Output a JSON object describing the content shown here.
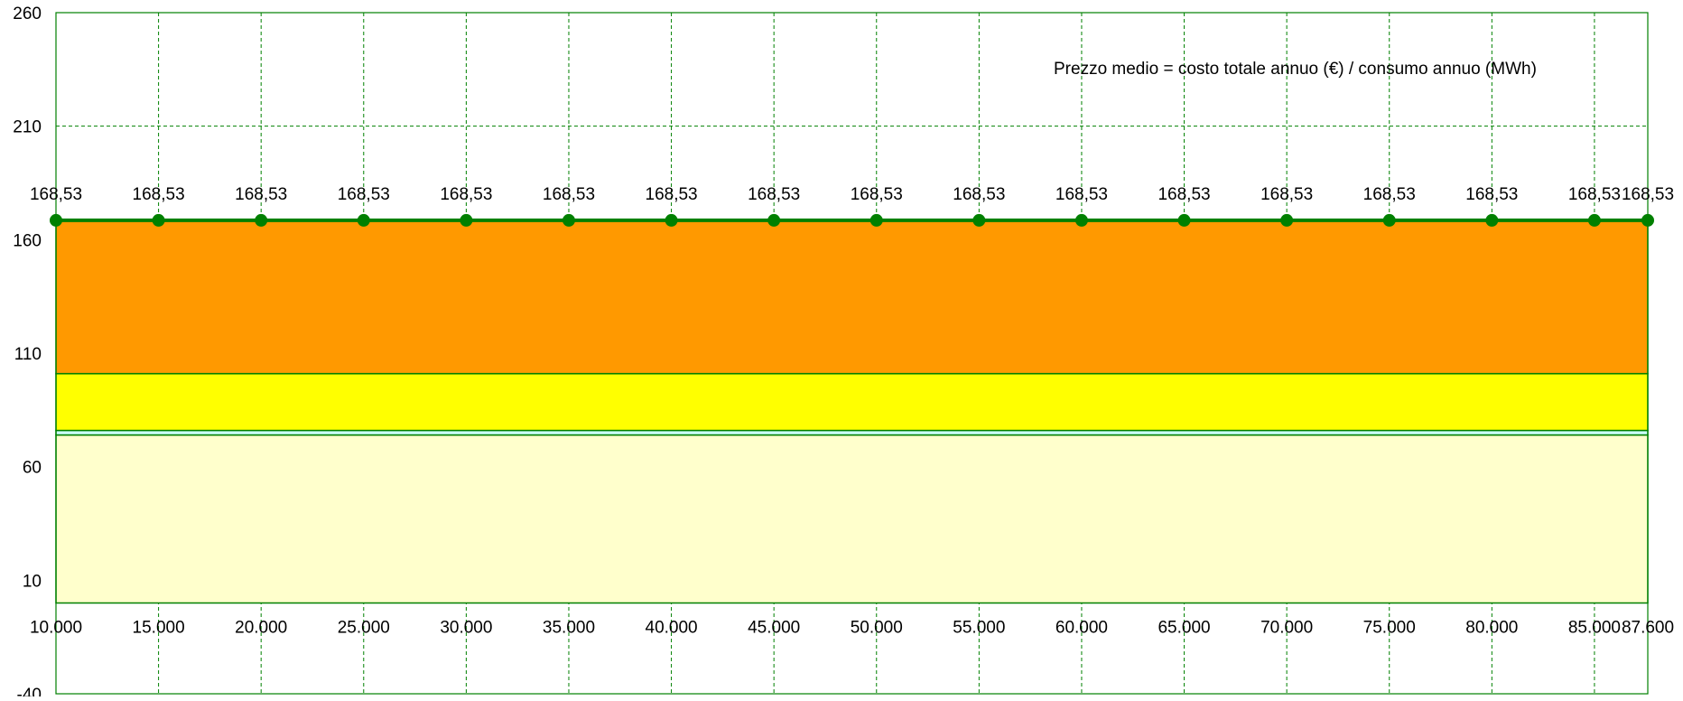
{
  "chart_data": {
    "type": "area",
    "title": "",
    "xlabel": "",
    "ylabel": "",
    "x": [
      10000,
      15000,
      20000,
      25000,
      30000,
      35000,
      40000,
      45000,
      50000,
      55000,
      60000,
      65000,
      70000,
      75000,
      80000,
      85000,
      87600
    ],
    "x_tick_labels": [
      "10.000",
      "15.000",
      "20.000",
      "25.000",
      "30.000",
      "35.000",
      "40.000",
      "45.000",
      "50.000",
      "55.000",
      "60.000",
      "65.000",
      "70.000",
      "75.000",
      "80.000",
      "85.000",
      "87.600"
    ],
    "ylim": [
      -40,
      260
    ],
    "y_ticks": [
      -40,
      10,
      60,
      110,
      160,
      210,
      260
    ],
    "y_tick_labels": [
      "-40",
      "10",
      "60",
      "110",
      "160",
      "210",
      "260"
    ],
    "grid": true,
    "stack_baseline": 0,
    "stacked_series": [
      {
        "values": [
          74.0,
          74.0,
          74.0,
          74.0,
          74.0,
          74.0,
          74.0,
          74.0,
          74.0,
          74.0,
          74.0,
          74.0,
          74.0,
          74.0,
          74.0,
          74.0,
          74.0
        ],
        "color": "#FFFFCC"
      },
      {
        "values": [
          2.0,
          2.0,
          2.0,
          2.0,
          2.0,
          2.0,
          2.0,
          2.0,
          2.0,
          2.0,
          2.0,
          2.0,
          2.0,
          2.0,
          2.0,
          2.0,
          2.0
        ],
        "color": "#CCFFFF"
      },
      {
        "values": [
          25.0,
          25.0,
          25.0,
          25.0,
          25.0,
          25.0,
          25.0,
          25.0,
          25.0,
          25.0,
          25.0,
          25.0,
          25.0,
          25.0,
          25.0,
          25.0,
          25.0
        ],
        "color": "#FFFF00"
      },
      {
        "values": [
          67.5,
          67.5,
          67.5,
          67.5,
          67.5,
          67.5,
          67.5,
          67.5,
          67.5,
          67.5,
          67.5,
          67.5,
          67.5,
          67.5,
          67.5,
          67.5,
          67.5
        ],
        "color": "#FF9900"
      }
    ],
    "line_series": {
      "values": [
        168.53,
        168.53,
        168.53,
        168.53,
        168.53,
        168.53,
        168.53,
        168.53,
        168.53,
        168.53,
        168.53,
        168.53,
        168.53,
        168.53,
        168.53,
        168.53,
        168.53
      ],
      "labels": [
        "168,53",
        "168,53",
        "168,53",
        "168,53",
        "168,53",
        "168,53",
        "168,53",
        "168,53",
        "168,53",
        "168,53",
        "168,53",
        "168,53",
        "168,53",
        "168,53",
        "168,53",
        "168,53",
        "168,53"
      ],
      "color": "#008000"
    },
    "annotation": "Prezzo medio = costo totale annuo (€) / consumo annuo (MWh)",
    "grid_color": "#008000",
    "axis_color": "#008000"
  }
}
